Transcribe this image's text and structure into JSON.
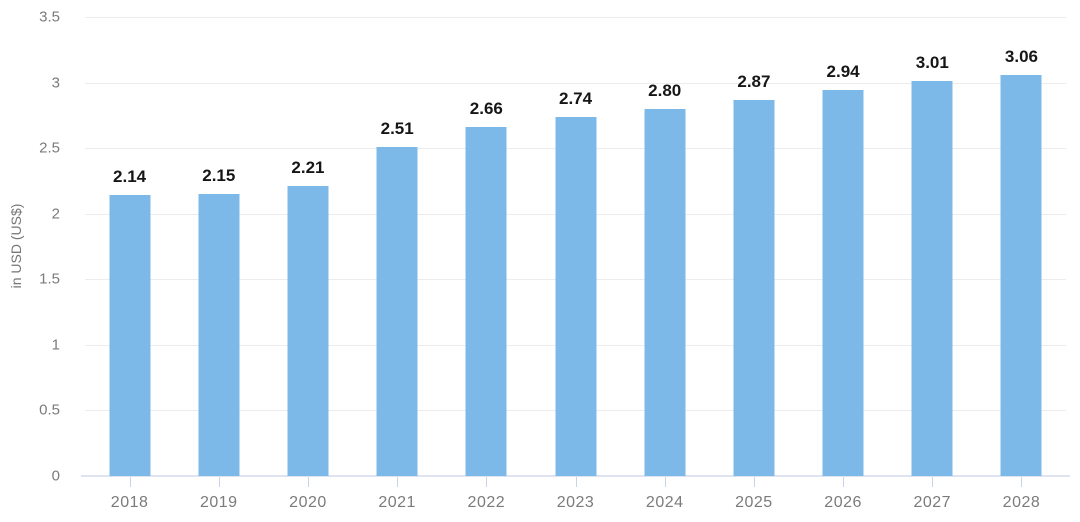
{
  "chart_data": {
    "type": "bar",
    "title": "",
    "xlabel": "",
    "ylabel": "in USD (US$)",
    "categories": [
      "2018",
      "2019",
      "2020",
      "2021",
      "2022",
      "2023",
      "2024",
      "2025",
      "2026",
      "2027",
      "2028"
    ],
    "values": [
      2.14,
      2.15,
      2.21,
      2.51,
      2.66,
      2.74,
      2.8,
      2.87,
      2.94,
      3.01,
      3.06
    ],
    "value_labels": [
      "2.14",
      "2.15",
      "2.21",
      "2.51",
      "2.66",
      "2.74",
      "2.80",
      "2.87",
      "2.94",
      "3.01",
      "3.06"
    ],
    "ylim": [
      0,
      3.5
    ],
    "ytick_labels": [
      "0",
      "0.5",
      "1",
      "1.5",
      "2",
      "2.5",
      "3",
      "3.5"
    ],
    "grid": true,
    "legend": "none",
    "bar_color": "#7cb9e8",
    "gridline_color": "#ececec",
    "baseline_color": "#dde3f1",
    "axis_text_color": "#7b7b7b",
    "value_text_color": "#161616"
  }
}
